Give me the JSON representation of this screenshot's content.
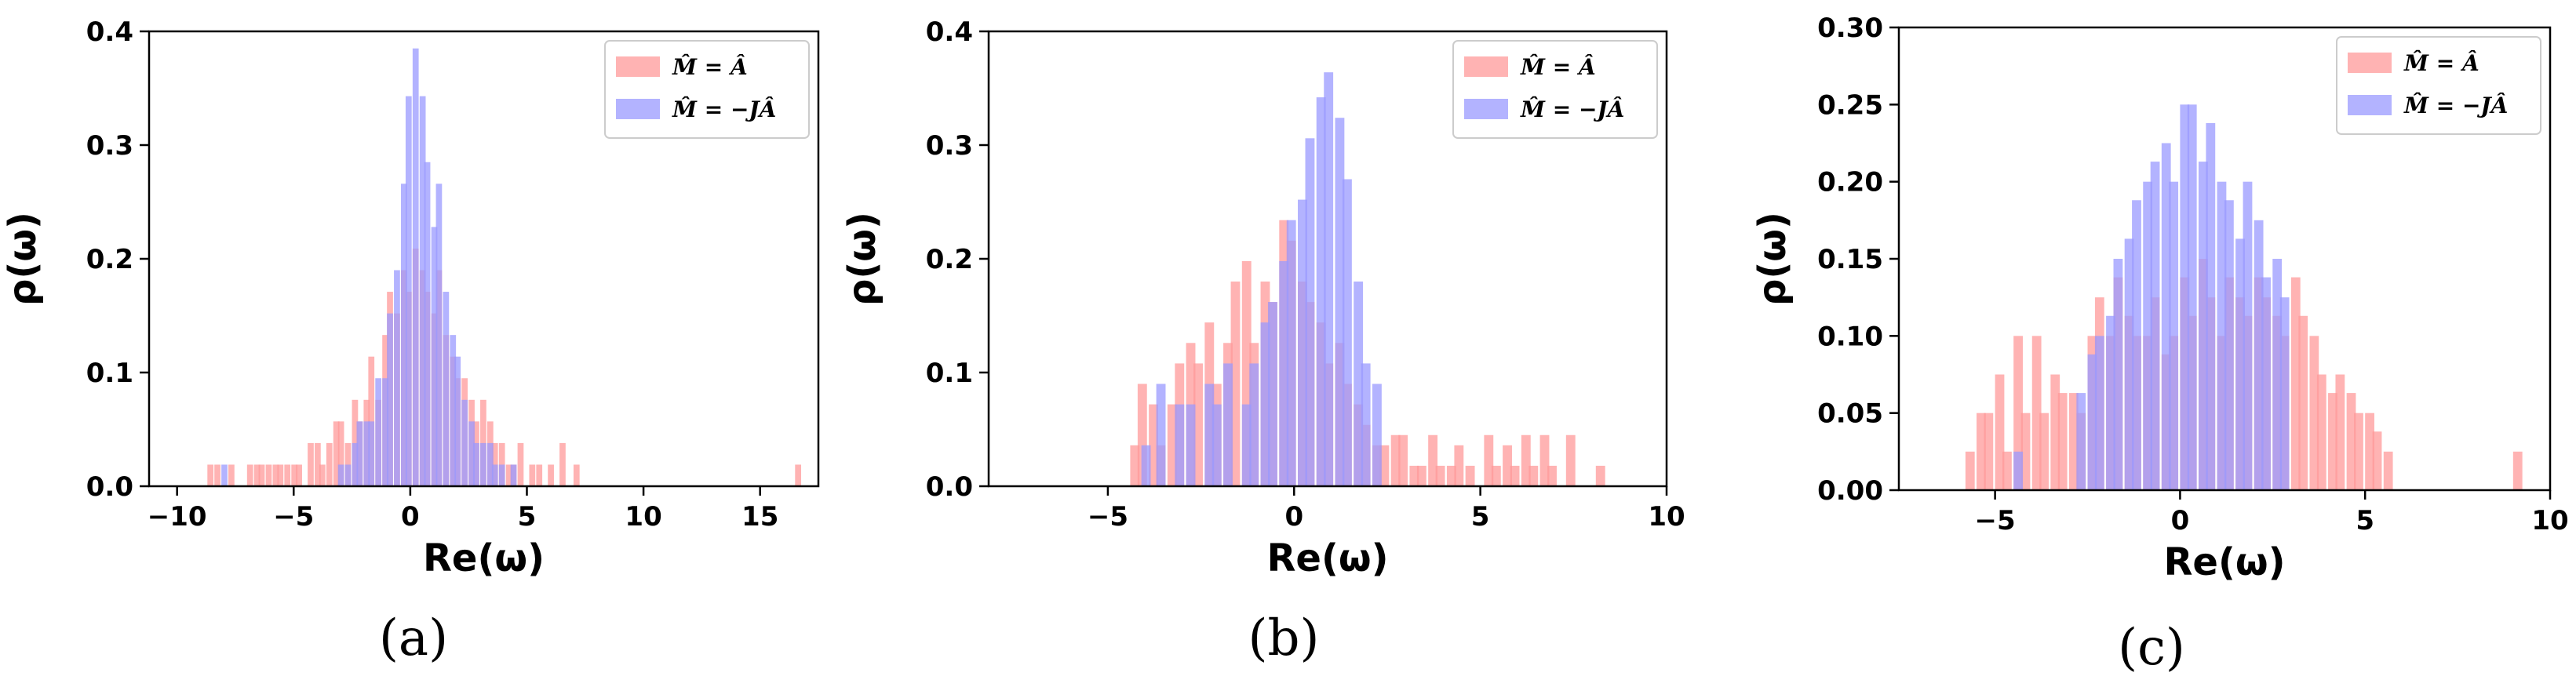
{
  "chart_data": [
    {
      "type": "bar",
      "caption": "(a)",
      "xlabel": "Re(ω)",
      "ylabel": "ρ(ω)",
      "xlim": [
        -11.2,
        17.5
      ],
      "ylim": [
        0,
        0.4
      ],
      "xticks": [
        -10,
        -5,
        0,
        5,
        10,
        15
      ],
      "yticks": [
        0.0,
        0.1,
        0.2,
        0.3,
        0.4
      ],
      "ytick_labels": [
        "0.0",
        "0.1",
        "0.2",
        "0.3",
        "0.4"
      ],
      "grid": false,
      "legend_placement": "top-right",
      "bin_width": 0.26,
      "series": [
        {
          "name": "M̂ = Â",
          "color": "#ff9999",
          "opacity": 0.75,
          "bins": [
            [
              -8.7,
              0.019
            ],
            [
              -8.4,
              0.019
            ],
            [
              -7.8,
              0.019
            ],
            [
              -7.0,
              0.019
            ],
            [
              -6.7,
              0.019
            ],
            [
              -6.5,
              0.019
            ],
            [
              -6.2,
              0.019
            ],
            [
              -5.9,
              0.019
            ],
            [
              -5.7,
              0.019
            ],
            [
              -5.4,
              0.019
            ],
            [
              -5.1,
              0.019
            ],
            [
              -4.9,
              0.019
            ],
            [
              -4.4,
              0.038
            ],
            [
              -4.1,
              0.038
            ],
            [
              -3.9,
              0.019
            ],
            [
              -3.6,
              0.038
            ],
            [
              -3.3,
              0.057
            ],
            [
              -3.1,
              0.057
            ],
            [
              -2.8,
              0.038
            ],
            [
              -2.5,
              0.076
            ],
            [
              -2.3,
              0.057
            ],
            [
              -2.0,
              0.076
            ],
            [
              -1.8,
              0.114
            ],
            [
              -1.5,
              0.076
            ],
            [
              -1.2,
              0.133
            ],
            [
              -1.0,
              0.171
            ],
            [
              -0.7,
              0.152
            ],
            [
              -0.4,
              0.19
            ],
            [
              -0.2,
              0.171
            ],
            [
              0.1,
              0.209
            ],
            [
              0.4,
              0.19
            ],
            [
              0.6,
              0.171
            ],
            [
              0.9,
              0.152
            ],
            [
              1.1,
              0.19
            ],
            [
              1.4,
              0.133
            ],
            [
              1.7,
              0.114
            ],
            [
              1.9,
              0.095
            ],
            [
              2.2,
              0.095
            ],
            [
              2.5,
              0.076
            ],
            [
              2.7,
              0.057
            ],
            [
              3.0,
              0.076
            ],
            [
              3.3,
              0.057
            ],
            [
              3.5,
              0.038
            ],
            [
              3.8,
              0.038
            ],
            [
              4.1,
              0.019
            ],
            [
              4.3,
              0.019
            ],
            [
              4.6,
              0.038
            ],
            [
              5.1,
              0.019
            ],
            [
              5.4,
              0.019
            ],
            [
              5.9,
              0.019
            ],
            [
              6.4,
              0.038
            ],
            [
              7.0,
              0.019
            ],
            [
              16.5,
              0.019
            ]
          ]
        },
        {
          "name": "M̂ = −JÂ",
          "color": "#9999ff",
          "opacity": 0.75,
          "bins": [
            [
              -8.1,
              0.019
            ],
            [
              -3.1,
              0.019
            ],
            [
              -2.8,
              0.019
            ],
            [
              -2.5,
              0.038
            ],
            [
              -2.3,
              0.057
            ],
            [
              -2.0,
              0.057
            ],
            [
              -1.8,
              0.057
            ],
            [
              -1.5,
              0.095
            ],
            [
              -1.2,
              0.095
            ],
            [
              -1.0,
              0.152
            ],
            [
              -0.7,
              0.19
            ],
            [
              -0.4,
              0.266
            ],
            [
              -0.2,
              0.343
            ],
            [
              0.1,
              0.385
            ],
            [
              0.4,
              0.343
            ],
            [
              0.6,
              0.285
            ],
            [
              0.9,
              0.228
            ],
            [
              1.1,
              0.266
            ],
            [
              1.4,
              0.171
            ],
            [
              1.7,
              0.133
            ],
            [
              1.9,
              0.114
            ],
            [
              2.2,
              0.076
            ],
            [
              2.5,
              0.057
            ],
            [
              2.7,
              0.038
            ],
            [
              3.0,
              0.038
            ],
            [
              3.3,
              0.038
            ],
            [
              3.5,
              0.019
            ],
            [
              3.8,
              0.019
            ],
            [
              4.3,
              0.019
            ]
          ]
        }
      ]
    },
    {
      "type": "bar",
      "caption": "(b)",
      "xlabel": "Re(ω)",
      "ylabel": "ρ(ω)",
      "xlim": [
        -8.2,
        10
      ],
      "ylim": [
        0,
        0.4
      ],
      "xticks": [
        -5,
        0,
        5,
        10
      ],
      "yticks": [
        0.0,
        0.1,
        0.2,
        0.3,
        0.4
      ],
      "ytick_labels": [
        "0.0",
        "0.1",
        "0.2",
        "0.3",
        "0.4"
      ],
      "grid": false,
      "legend_placement": "top-right",
      "bin_width": 0.25,
      "series": [
        {
          "name": "M̂ = Â",
          "color": "#ff9999",
          "opacity": 0.75,
          "bins": [
            [
              -4.4,
              0.036
            ],
            [
              -4.2,
              0.09
            ],
            [
              -3.9,
              0.072
            ],
            [
              -3.7,
              0.036
            ],
            [
              -3.4,
              0.072
            ],
            [
              -3.2,
              0.108
            ],
            [
              -2.9,
              0.126
            ],
            [
              -2.7,
              0.108
            ],
            [
              -2.4,
              0.144
            ],
            [
              -2.2,
              0.09
            ],
            [
              -1.9,
              0.126
            ],
            [
              -1.7,
              0.18
            ],
            [
              -1.4,
              0.198
            ],
            [
              -1.2,
              0.126
            ],
            [
              -0.9,
              0.18
            ],
            [
              -0.7,
              0.162
            ],
            [
              -0.4,
              0.234
            ],
            [
              -0.2,
              0.216
            ],
            [
              0.1,
              0.18
            ],
            [
              0.3,
              0.162
            ],
            [
              0.6,
              0.144
            ],
            [
              0.8,
              0.108
            ],
            [
              1.1,
              0.126
            ],
            [
              1.3,
              0.09
            ],
            [
              1.6,
              0.072
            ],
            [
              1.8,
              0.054
            ],
            [
              2.1,
              0.036
            ],
            [
              2.3,
              0.036
            ],
            [
              2.6,
              0.045
            ],
            [
              2.8,
              0.045
            ],
            [
              3.1,
              0.018
            ],
            [
              3.3,
              0.018
            ],
            [
              3.6,
              0.045
            ],
            [
              3.8,
              0.018
            ],
            [
              4.1,
              0.018
            ],
            [
              4.3,
              0.036
            ],
            [
              4.6,
              0.018
            ],
            [
              5.1,
              0.045
            ],
            [
              5.3,
              0.018
            ],
            [
              5.6,
              0.036
            ],
            [
              5.8,
              0.018
            ],
            [
              6.1,
              0.045
            ],
            [
              6.3,
              0.018
            ],
            [
              6.6,
              0.045
            ],
            [
              6.8,
              0.018
            ],
            [
              7.3,
              0.045
            ],
            [
              8.1,
              0.018
            ]
          ]
        },
        {
          "name": "M̂ = −JÂ",
          "color": "#9999ff",
          "opacity": 0.75,
          "bins": [
            [
              -4.1,
              0.036
            ],
            [
              -3.7,
              0.09
            ],
            [
              -3.2,
              0.072
            ],
            [
              -2.9,
              0.072
            ],
            [
              -2.4,
              0.09
            ],
            [
              -2.2,
              0.072
            ],
            [
              -1.9,
              0.108
            ],
            [
              -1.4,
              0.072
            ],
            [
              -1.2,
              0.108
            ],
            [
              -0.9,
              0.144
            ],
            [
              -0.7,
              0.162
            ],
            [
              -0.4,
              0.198
            ],
            [
              -0.2,
              0.234
            ],
            [
              0.1,
              0.252
            ],
            [
              0.3,
              0.306
            ],
            [
              0.6,
              0.342
            ],
            [
              0.8,
              0.364
            ],
            [
              1.1,
              0.324
            ],
            [
              1.3,
              0.27
            ],
            [
              1.6,
              0.18
            ],
            [
              1.8,
              0.108
            ],
            [
              2.1,
              0.09
            ]
          ]
        }
      ]
    },
    {
      "type": "bar",
      "caption": "(c)",
      "xlabel": "Re(ω)",
      "ylabel": "ρ(ω)",
      "xlim": [
        -7.6,
        10
      ],
      "ylim": [
        0,
        0.3
      ],
      "xticks": [
        -5,
        0,
        5,
        10
      ],
      "yticks": [
        0.0,
        0.05,
        0.1,
        0.15,
        0.2,
        0.25,
        0.3
      ],
      "ytick_labels": [
        "0.00",
        "0.05",
        "0.10",
        "0.15",
        "0.20",
        "0.25",
        "0.30"
      ],
      "grid": false,
      "legend_placement": "top-right",
      "bin_width": 0.25,
      "series": [
        {
          "name": "M̂ = Â",
          "color": "#ff9999",
          "opacity": 0.75,
          "bins": [
            [
              -5.8,
              0.025
            ],
            [
              -5.5,
              0.05
            ],
            [
              -5.3,
              0.05
            ],
            [
              -5.0,
              0.075
            ],
            [
              -4.8,
              0.025
            ],
            [
              -4.5,
              0.1
            ],
            [
              -4.3,
              0.05
            ],
            [
              -4.0,
              0.1
            ],
            [
              -3.8,
              0.05
            ],
            [
              -3.5,
              0.075
            ],
            [
              -3.3,
              0.063
            ],
            [
              -3.0,
              0.063
            ],
            [
              -2.8,
              0.05
            ],
            [
              -2.5,
              0.1
            ],
            [
              -2.3,
              0.125
            ],
            [
              -2.0,
              0.1
            ],
            [
              -1.8,
              0.138
            ],
            [
              -1.5,
              0.113
            ],
            [
              -1.3,
              0.1
            ],
            [
              -1.0,
              0.1
            ],
            [
              -0.8,
              0.125
            ],
            [
              -0.5,
              0.088
            ],
            [
              -0.3,
              0.1
            ],
            [
              0.0,
              0.138
            ],
            [
              0.2,
              0.113
            ],
            [
              0.5,
              0.15
            ],
            [
              0.7,
              0.125
            ],
            [
              1.0,
              0.1
            ],
            [
              1.2,
              0.138
            ],
            [
              1.5,
              0.125
            ],
            [
              1.7,
              0.113
            ],
            [
              2.0,
              0.138
            ],
            [
              2.2,
              0.125
            ],
            [
              2.5,
              0.113
            ],
            [
              2.7,
              0.1
            ],
            [
              3.0,
              0.138
            ],
            [
              3.2,
              0.113
            ],
            [
              3.5,
              0.1
            ],
            [
              3.7,
              0.075
            ],
            [
              4.0,
              0.063
            ],
            [
              4.2,
              0.075
            ],
            [
              4.5,
              0.063
            ],
            [
              4.7,
              0.05
            ],
            [
              5.0,
              0.05
            ],
            [
              5.2,
              0.038
            ],
            [
              5.5,
              0.025
            ],
            [
              9.0,
              0.025
            ]
          ]
        },
        {
          "name": "M̂ = −JÂ",
          "color": "#9999ff",
          "opacity": 0.75,
          "bins": [
            [
              -4.5,
              0.025
            ],
            [
              -2.8,
              0.063
            ],
            [
              -2.5,
              0.088
            ],
            [
              -2.3,
              0.1
            ],
            [
              -2.0,
              0.113
            ],
            [
              -1.8,
              0.15
            ],
            [
              -1.5,
              0.163
            ],
            [
              -1.3,
              0.188
            ],
            [
              -1.0,
              0.2
            ],
            [
              -0.8,
              0.213
            ],
            [
              -0.5,
              0.225
            ],
            [
              -0.3,
              0.2
            ],
            [
              0.0,
              0.25
            ],
            [
              0.2,
              0.25
            ],
            [
              0.5,
              0.213
            ],
            [
              0.7,
              0.238
            ],
            [
              1.0,
              0.2
            ],
            [
              1.2,
              0.188
            ],
            [
              1.5,
              0.163
            ],
            [
              1.7,
              0.2
            ],
            [
              2.0,
              0.175
            ],
            [
              2.2,
              0.138
            ],
            [
              2.5,
              0.15
            ],
            [
              2.7,
              0.125
            ]
          ]
        }
      ]
    }
  ]
}
